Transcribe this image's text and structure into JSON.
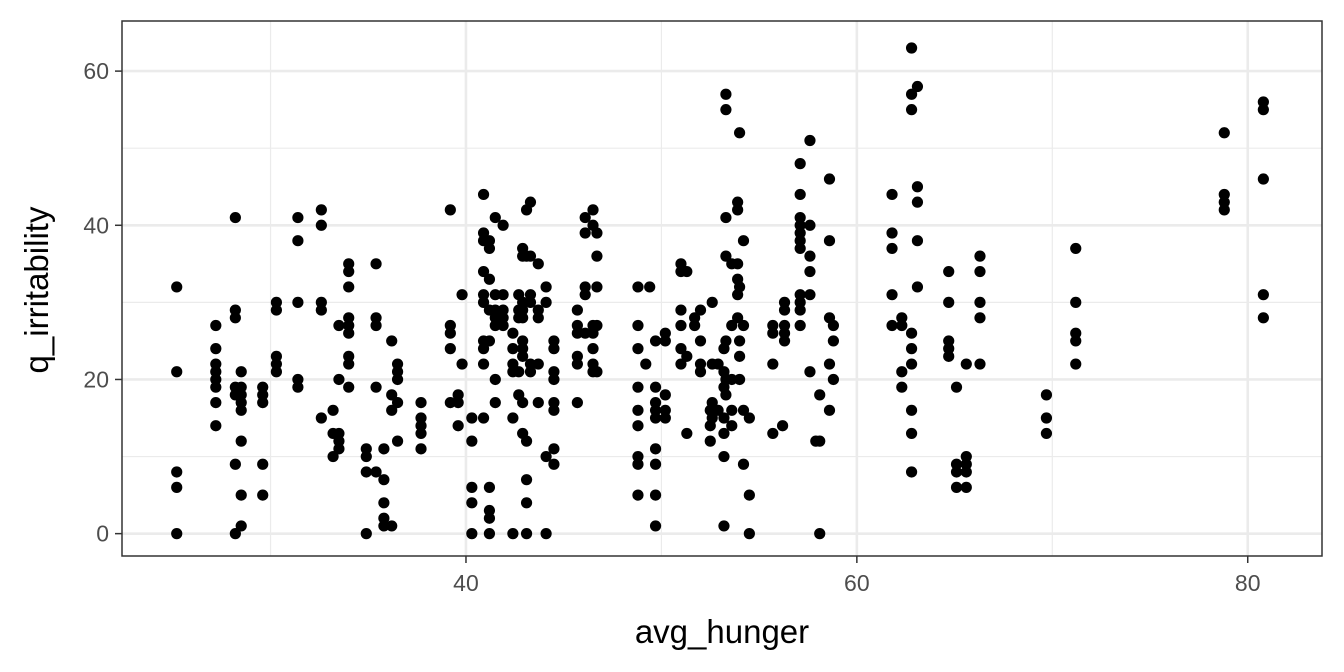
{
  "chart_data": {
    "type": "scatter",
    "title": "",
    "xlabel": "avg_hunger",
    "ylabel": "q_irritability",
    "xlim": [
      22.4,
      83.8
    ],
    "ylim": [
      -2.9,
      66.5
    ],
    "x_ticks": [
      40,
      60,
      80
    ],
    "x_tick_labels": [
      "40",
      "60",
      "80"
    ],
    "x_minor_ticks": [
      30,
      50,
      70
    ],
    "y_ticks": [
      0,
      20,
      40,
      60
    ],
    "y_tick_labels": [
      "0",
      "20",
      "40",
      "60"
    ],
    "y_minor_ticks": [
      10,
      30,
      50
    ],
    "grid": true,
    "legend": "none",
    "point_color": "#000000",
    "points": [
      [
        25.2,
        32
      ],
      [
        25.2,
        21
      ],
      [
        25.2,
        8
      ],
      [
        25.2,
        6
      ],
      [
        25.2,
        0
      ],
      [
        27.2,
        27
      ],
      [
        27.2,
        24
      ],
      [
        27.2,
        22
      ],
      [
        27.2,
        21
      ],
      [
        27.2,
        20
      ],
      [
        27.2,
        19
      ],
      [
        27.2,
        17
      ],
      [
        27.2,
        14
      ],
      [
        28.2,
        41
      ],
      [
        28.2,
        29
      ],
      [
        28.2,
        28
      ],
      [
        28.2,
        19
      ],
      [
        28.2,
        18
      ],
      [
        28.2,
        9
      ],
      [
        28.2,
        0
      ],
      [
        28.5,
        21
      ],
      [
        28.5,
        19
      ],
      [
        28.5,
        18
      ],
      [
        28.5,
        17
      ],
      [
        28.5,
        16
      ],
      [
        28.5,
        12
      ],
      [
        28.5,
        5
      ],
      [
        28.5,
        1
      ],
      [
        29.6,
        19
      ],
      [
        29.6,
        18
      ],
      [
        29.6,
        17
      ],
      [
        29.6,
        9
      ],
      [
        29.6,
        5
      ],
      [
        30.3,
        30
      ],
      [
        30.3,
        29
      ],
      [
        30.3,
        23
      ],
      [
        30.3,
        22
      ],
      [
        30.3,
        21
      ],
      [
        31.4,
        41
      ],
      [
        31.4,
        38
      ],
      [
        31.4,
        30
      ],
      [
        31.4,
        20
      ],
      [
        31.4,
        19
      ],
      [
        32.6,
        42
      ],
      [
        32.6,
        40
      ],
      [
        32.6,
        30
      ],
      [
        32.6,
        29
      ],
      [
        32.6,
        15
      ],
      [
        33.2,
        16
      ],
      [
        33.2,
        13
      ],
      [
        33.2,
        10
      ],
      [
        33.5,
        27
      ],
      [
        33.5,
        20
      ],
      [
        33.5,
        13
      ],
      [
        33.5,
        12
      ],
      [
        33.5,
        11
      ],
      [
        34.0,
        35
      ],
      [
        34.0,
        34
      ],
      [
        34.0,
        32
      ],
      [
        34.0,
        28
      ],
      [
        34.0,
        27
      ],
      [
        34.0,
        26
      ],
      [
        34.0,
        23
      ],
      [
        34.0,
        22
      ],
      [
        34.0,
        19
      ],
      [
        34.9,
        11
      ],
      [
        34.9,
        10
      ],
      [
        34.9,
        8
      ],
      [
        34.9,
        0
      ],
      [
        35.4,
        35
      ],
      [
        35.4,
        28
      ],
      [
        35.4,
        27
      ],
      [
        35.4,
        19
      ],
      [
        35.4,
        8
      ],
      [
        35.8,
        11
      ],
      [
        35.8,
        7
      ],
      [
        35.8,
        4
      ],
      [
        35.8,
        2
      ],
      [
        35.8,
        1
      ],
      [
        36.2,
        25
      ],
      [
        36.2,
        18
      ],
      [
        36.2,
        16
      ],
      [
        36.2,
        1
      ],
      [
        36.5,
        22
      ],
      [
        36.5,
        21
      ],
      [
        36.5,
        20
      ],
      [
        36.5,
        17
      ],
      [
        36.5,
        12
      ],
      [
        37.7,
        17
      ],
      [
        37.7,
        15
      ],
      [
        37.7,
        14
      ],
      [
        37.7,
        13
      ],
      [
        37.7,
        11
      ],
      [
        39.2,
        42
      ],
      [
        39.2,
        27
      ],
      [
        39.2,
        26
      ],
      [
        39.2,
        24
      ],
      [
        39.2,
        17
      ],
      [
        39.6,
        17
      ],
      [
        39.6,
        18
      ],
      [
        39.6,
        14
      ],
      [
        39.8,
        31
      ],
      [
        39.8,
        22
      ],
      [
        40.3,
        15
      ],
      [
        40.3,
        12
      ],
      [
        40.3,
        6
      ],
      [
        40.3,
        4
      ],
      [
        40.3,
        0
      ],
      [
        40.9,
        44
      ],
      [
        40.9,
        39
      ],
      [
        40.9,
        38
      ],
      [
        40.9,
        34
      ],
      [
        40.9,
        31
      ],
      [
        40.9,
        30
      ],
      [
        40.9,
        25
      ],
      [
        40.9,
        24
      ],
      [
        40.9,
        22
      ],
      [
        40.9,
        15
      ],
      [
        41.2,
        38
      ],
      [
        41.2,
        37
      ],
      [
        41.2,
        33
      ],
      [
        41.2,
        29
      ],
      [
        41.2,
        25
      ],
      [
        41.2,
        6
      ],
      [
        41.2,
        3
      ],
      [
        41.2,
        2
      ],
      [
        41.2,
        0
      ],
      [
        41.5,
        41
      ],
      [
        41.5,
        31
      ],
      [
        41.5,
        29
      ],
      [
        41.5,
        28
      ],
      [
        41.5,
        27
      ],
      [
        41.5,
        20
      ],
      [
        41.5,
        17
      ],
      [
        41.9,
        40
      ],
      [
        41.9,
        31
      ],
      [
        41.9,
        29
      ],
      [
        41.9,
        28
      ],
      [
        41.9,
        27
      ],
      [
        42.4,
        26
      ],
      [
        42.4,
        24
      ],
      [
        42.4,
        22
      ],
      [
        42.4,
        21
      ],
      [
        42.4,
        15
      ],
      [
        42.4,
        0
      ],
      [
        42.7,
        31
      ],
      [
        42.7,
        29
      ],
      [
        42.7,
        28
      ],
      [
        42.7,
        21
      ],
      [
        42.7,
        18
      ],
      [
        42.9,
        37
      ],
      [
        42.9,
        36
      ],
      [
        42.9,
        30
      ],
      [
        42.9,
        29
      ],
      [
        42.9,
        28
      ],
      [
        42.9,
        25
      ],
      [
        42.9,
        24
      ],
      [
        42.9,
        23
      ],
      [
        42.9,
        17
      ],
      [
        42.9,
        13
      ],
      [
        43.1,
        42
      ],
      [
        43.1,
        36
      ],
      [
        43.1,
        12
      ],
      [
        43.1,
        7
      ],
      [
        43.1,
        4
      ],
      [
        43.1,
        0
      ],
      [
        43.3,
        43
      ],
      [
        43.3,
        36
      ],
      [
        43.3,
        31
      ],
      [
        43.3,
        30
      ],
      [
        43.3,
        22
      ],
      [
        43.3,
        21
      ],
      [
        43.7,
        35
      ],
      [
        43.7,
        29
      ],
      [
        43.7,
        28
      ],
      [
        43.7,
        22
      ],
      [
        43.7,
        17
      ],
      [
        44.1,
        32
      ],
      [
        44.1,
        30
      ],
      [
        44.1,
        10
      ],
      [
        44.1,
        0
      ],
      [
        44.5,
        25
      ],
      [
        44.5,
        24
      ],
      [
        44.5,
        21
      ],
      [
        44.5,
        20
      ],
      [
        44.5,
        17
      ],
      [
        44.5,
        16
      ],
      [
        44.5,
        11
      ],
      [
        44.5,
        9
      ],
      [
        45.7,
        29
      ],
      [
        45.7,
        27
      ],
      [
        45.7,
        26
      ],
      [
        45.7,
        23
      ],
      [
        45.7,
        22
      ],
      [
        45.7,
        17
      ],
      [
        46.1,
        41
      ],
      [
        46.1,
        39
      ],
      [
        46.1,
        32
      ],
      [
        46.1,
        31
      ],
      [
        46.1,
        26
      ],
      [
        46.5,
        42
      ],
      [
        46.5,
        40
      ],
      [
        46.5,
        27
      ],
      [
        46.5,
        26
      ],
      [
        46.5,
        24
      ],
      [
        46.5,
        22
      ],
      [
        46.5,
        21
      ],
      [
        46.7,
        39
      ],
      [
        46.7,
        36
      ],
      [
        46.7,
        32
      ],
      [
        46.7,
        27
      ],
      [
        46.7,
        21
      ],
      [
        48.8,
        32
      ],
      [
        48.8,
        27
      ],
      [
        48.8,
        24
      ],
      [
        48.8,
        19
      ],
      [
        48.8,
        16
      ],
      [
        48.8,
        14
      ],
      [
        48.8,
        10
      ],
      [
        48.8,
        9
      ],
      [
        48.8,
        5
      ],
      [
        49.2,
        22
      ],
      [
        49.4,
        32
      ],
      [
        49.7,
        25
      ],
      [
        49.7,
        19
      ],
      [
        49.7,
        17
      ],
      [
        49.7,
        16
      ],
      [
        49.7,
        15
      ],
      [
        49.7,
        11
      ],
      [
        49.7,
        9
      ],
      [
        49.7,
        5
      ],
      [
        49.7,
        1
      ],
      [
        50.2,
        26
      ],
      [
        50.2,
        25
      ],
      [
        50.2,
        18
      ],
      [
        50.2,
        16
      ],
      [
        50.2,
        15
      ],
      [
        51.0,
        35
      ],
      [
        51.0,
        34
      ],
      [
        51.0,
        29
      ],
      [
        51.0,
        27
      ],
      [
        51.0,
        24
      ],
      [
        51.0,
        22
      ],
      [
        51.3,
        34
      ],
      [
        51.3,
        23
      ],
      [
        51.3,
        13
      ],
      [
        51.7,
        28
      ],
      [
        51.7,
        27
      ],
      [
        52.0,
        29
      ],
      [
        52.0,
        25
      ],
      [
        52.0,
        22
      ],
      [
        52.0,
        21
      ],
      [
        52.5,
        16
      ],
      [
        52.5,
        14
      ],
      [
        52.5,
        12
      ],
      [
        52.6,
        30
      ],
      [
        52.6,
        22
      ],
      [
        52.6,
        17
      ],
      [
        52.6,
        15
      ],
      [
        52.9,
        22
      ],
      [
        52.9,
        16
      ],
      [
        53.2,
        24
      ],
      [
        53.2,
        21
      ],
      [
        53.2,
        19
      ],
      [
        53.2,
        15
      ],
      [
        53.2,
        13
      ],
      [
        53.2,
        10
      ],
      [
        53.2,
        1
      ],
      [
        53.3,
        57
      ],
      [
        53.3,
        55
      ],
      [
        53.3,
        41
      ],
      [
        53.3,
        36
      ],
      [
        53.3,
        25
      ],
      [
        53.3,
        20
      ],
      [
        53.3,
        18
      ],
      [
        53.6,
        35
      ],
      [
        53.6,
        27
      ],
      [
        53.6,
        20
      ],
      [
        53.6,
        16
      ],
      [
        53.6,
        14
      ],
      [
        53.9,
        43
      ],
      [
        53.9,
        42
      ],
      [
        53.9,
        35
      ],
      [
        53.9,
        33
      ],
      [
        53.9,
        31
      ],
      [
        53.9,
        28
      ],
      [
        54.0,
        52
      ],
      [
        54.0,
        32
      ],
      [
        54.0,
        25
      ],
      [
        54.0,
        23
      ],
      [
        54.0,
        20
      ],
      [
        54.2,
        38
      ],
      [
        54.2,
        27
      ],
      [
        54.2,
        16
      ],
      [
        54.2,
        9
      ],
      [
        54.5,
        15
      ],
      [
        54.5,
        5
      ],
      [
        54.5,
        0
      ],
      [
        55.7,
        27
      ],
      [
        55.7,
        26
      ],
      [
        55.7,
        22
      ],
      [
        55.7,
        13
      ],
      [
        56.2,
        14
      ],
      [
        56.3,
        30
      ],
      [
        56.3,
        29
      ],
      [
        56.3,
        27
      ],
      [
        56.3,
        26
      ],
      [
        56.3,
        25
      ],
      [
        57.1,
        48
      ],
      [
        57.1,
        44
      ],
      [
        57.1,
        41
      ],
      [
        57.1,
        40
      ],
      [
        57.1,
        39
      ],
      [
        57.1,
        38
      ],
      [
        57.1,
        37
      ],
      [
        57.1,
        31
      ],
      [
        57.1,
        30
      ],
      [
        57.1,
        29
      ],
      [
        57.1,
        27
      ],
      [
        57.6,
        51
      ],
      [
        57.6,
        40
      ],
      [
        57.6,
        36
      ],
      [
        57.6,
        34
      ],
      [
        57.6,
        31
      ],
      [
        57.6,
        21
      ],
      [
        57.9,
        12
      ],
      [
        58.1,
        18
      ],
      [
        58.1,
        12
      ],
      [
        58.1,
        0
      ],
      [
        58.6,
        46
      ],
      [
        58.6,
        38
      ],
      [
        58.6,
        28
      ],
      [
        58.6,
        22
      ],
      [
        58.6,
        16
      ],
      [
        58.8,
        27
      ],
      [
        58.8,
        25
      ],
      [
        58.8,
        20
      ],
      [
        61.8,
        44
      ],
      [
        61.8,
        39
      ],
      [
        61.8,
        37
      ],
      [
        61.8,
        31
      ],
      [
        61.8,
        27
      ],
      [
        62.3,
        28
      ],
      [
        62.3,
        27
      ],
      [
        62.3,
        21
      ],
      [
        62.3,
        19
      ],
      [
        62.8,
        63
      ],
      [
        62.8,
        57
      ],
      [
        62.8,
        55
      ],
      [
        62.8,
        26
      ],
      [
        62.8,
        24
      ],
      [
        62.8,
        22
      ],
      [
        62.8,
        16
      ],
      [
        62.8,
        13
      ],
      [
        62.8,
        8
      ],
      [
        63.1,
        58
      ],
      [
        63.1,
        45
      ],
      [
        63.1,
        43
      ],
      [
        63.1,
        38
      ],
      [
        63.1,
        32
      ],
      [
        64.7,
        34
      ],
      [
        64.7,
        30
      ],
      [
        64.7,
        25
      ],
      [
        64.7,
        24
      ],
      [
        64.7,
        23
      ],
      [
        65.1,
        19
      ],
      [
        65.1,
        9
      ],
      [
        65.1,
        8
      ],
      [
        65.1,
        6
      ],
      [
        65.6,
        22
      ],
      [
        65.6,
        10
      ],
      [
        65.6,
        9
      ],
      [
        65.6,
        8
      ],
      [
        65.6,
        6
      ],
      [
        66.3,
        36
      ],
      [
        66.3,
        34
      ],
      [
        66.3,
        30
      ],
      [
        66.3,
        28
      ],
      [
        66.3,
        22
      ],
      [
        69.7,
        18
      ],
      [
        69.7,
        15
      ],
      [
        69.7,
        13
      ],
      [
        71.2,
        37
      ],
      [
        71.2,
        30
      ],
      [
        71.2,
        26
      ],
      [
        71.2,
        25
      ],
      [
        71.2,
        22
      ],
      [
        78.8,
        52
      ],
      [
        78.8,
        44
      ],
      [
        78.8,
        43
      ],
      [
        78.8,
        42
      ],
      [
        80.8,
        56
      ],
      [
        80.8,
        55
      ],
      [
        80.8,
        46
      ],
      [
        80.8,
        31
      ],
      [
        80.8,
        28
      ]
    ]
  }
}
